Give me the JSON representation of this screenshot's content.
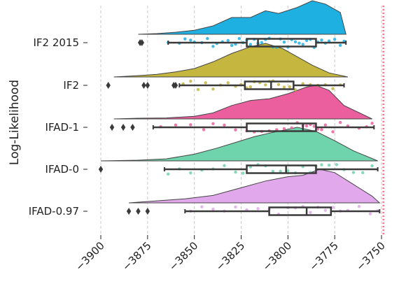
{
  "chart_data": {
    "type": "raincloud",
    "orientation": "horizontal",
    "title": "",
    "xlabel": "",
    "ylabel": "Log-Likelihood",
    "xlim": [
      -3900,
      -3750
    ],
    "x_ticks": [
      -3900,
      -3875,
      -3850,
      -3825,
      -3800,
      -3775,
      -3750
    ],
    "x_tick_labels": [
      "−3900",
      "−3875",
      "−3850",
      "−3825",
      "−3800",
      "−3775",
      "−3750"
    ],
    "grid": "vertical dashed",
    "reference_line": {
      "x": -3749,
      "color": "#ff6f86",
      "style": "dotted"
    },
    "categories": [
      "IF2 2015",
      "IF2",
      "IFAD-1",
      "IFAD-0",
      "IFAD-0.97"
    ],
    "series": [
      {
        "name": "IF2 2015",
        "color": "#1fb0e2",
        "box": {
          "whisker_low": -3864,
          "q1": -3822,
          "median": -3816,
          "q3": -3785,
          "whisker_high": -3769
        },
        "outliers": [
          -3879,
          -3878
        ],
        "density": [
          [
            -3880,
            0.0
          ],
          [
            -3870,
            0.02
          ],
          [
            -3860,
            0.06
          ],
          [
            -3850,
            0.12
          ],
          [
            -3840,
            0.25
          ],
          [
            -3830,
            0.5
          ],
          [
            -3820,
            0.5
          ],
          [
            -3812,
            0.7
          ],
          [
            -3805,
            0.62
          ],
          [
            -3795,
            0.8
          ],
          [
            -3787,
            1.0
          ],
          [
            -3780,
            0.9
          ],
          [
            -3772,
            0.65
          ],
          [
            -3769,
            0.0
          ]
        ],
        "points": [
          -3864,
          -3858,
          -3855,
          -3852,
          -3850,
          -3846,
          -3843,
          -3840,
          -3838,
          -3835,
          -3832,
          -3830,
          -3828,
          -3826,
          -3824,
          -3822,
          -3820,
          -3818,
          -3816,
          -3814,
          -3812,
          -3810,
          -3808,
          -3806,
          -3804,
          -3802,
          -3800,
          -3798,
          -3796,
          -3794,
          -3792,
          -3790,
          -3788,
          -3786,
          -3784,
          -3782,
          -3780,
          -3778,
          -3775,
          -3772,
          -3770
        ]
      },
      {
        "name": "IF2",
        "color": "#c4b63e",
        "box": {
          "whisker_low": -3858,
          "q1": -3823,
          "median": -3809,
          "q3": -3797,
          "whisker_high": -3770
        },
        "outliers": [
          -3896,
          -3877,
          -3875,
          -3861,
          -3860
        ],
        "density": [
          [
            -3893,
            0.0
          ],
          [
            -3880,
            0.04
          ],
          [
            -3870,
            0.08
          ],
          [
            -3860,
            0.15
          ],
          [
            -3850,
            0.25
          ],
          [
            -3840,
            0.45
          ],
          [
            -3830,
            0.7
          ],
          [
            -3820,
            0.9
          ],
          [
            -3812,
            1.0
          ],
          [
            -3803,
            0.85
          ],
          [
            -3795,
            0.6
          ],
          [
            -3787,
            0.35
          ],
          [
            -3778,
            0.12
          ],
          [
            -3768,
            0.0
          ]
        ],
        "points": [
          -3856,
          -3852,
          -3848,
          -3844,
          -3840,
          -3836,
          -3832,
          -3828,
          -3825,
          -3822,
          -3820,
          -3818,
          -3815,
          -3812,
          -3810,
          -3808,
          -3805,
          -3802,
          -3799,
          -3796,
          -3792,
          -3788,
          -3784,
          -3780,
          -3776,
          -3772
        ]
      },
      {
        "name": "IFAD-1",
        "color": "#ec5f9e",
        "box": {
          "whisker_low": -3872,
          "q1": -3822,
          "median": -3792,
          "q3": -3785,
          "whisker_high": -3754
        },
        "outliers": [
          -3894,
          -3888,
          -3883
        ],
        "density": [
          [
            -3893,
            0.0
          ],
          [
            -3880,
            0.02
          ],
          [
            -3865,
            0.03
          ],
          [
            -3850,
            0.08
          ],
          [
            -3840,
            0.18
          ],
          [
            -3830,
            0.4
          ],
          [
            -3820,
            0.55
          ],
          [
            -3810,
            0.6
          ],
          [
            -3800,
            0.75
          ],
          [
            -3790,
            0.95
          ],
          [
            -3785,
            1.0
          ],
          [
            -3778,
            0.85
          ],
          [
            -3770,
            0.4
          ],
          [
            -3755,
            0.0
          ]
        ],
        "points": [
          -3868,
          -3860,
          -3852,
          -3845,
          -3840,
          -3834,
          -3828,
          -3822,
          -3818,
          -3814,
          -3810,
          -3806,
          -3802,
          -3798,
          -3795,
          -3792,
          -3790,
          -3788,
          -3786,
          -3784,
          -3782,
          -3780,
          -3776,
          -3772,
          -3768,
          -3762,
          -3758,
          -3755
        ]
      },
      {
        "name": "IFAD-0",
        "color": "#6fd4ac",
        "box": {
          "whisker_low": -3866,
          "q1": -3822,
          "median": -3801,
          "q3": -3785,
          "whisker_high": -3752
        },
        "outliers": [
          -3900
        ],
        "density": [
          [
            -3900,
            0.0
          ],
          [
            -3880,
            0.02
          ],
          [
            -3865,
            0.06
          ],
          [
            -3850,
            0.2
          ],
          [
            -3838,
            0.38
          ],
          [
            -3828,
            0.55
          ],
          [
            -3818,
            0.72
          ],
          [
            -3808,
            0.85
          ],
          [
            -3795,
            1.0
          ],
          [
            -3785,
            0.88
          ],
          [
            -3775,
            0.6
          ],
          [
            -3765,
            0.3
          ],
          [
            -3752,
            0.0
          ]
        ],
        "points": [
          -3864,
          -3858,
          -3852,
          -3846,
          -3840,
          -3834,
          -3828,
          -3824,
          -3820,
          -3816,
          -3812,
          -3808,
          -3804,
          -3800,
          -3796,
          -3792,
          -3788,
          -3785,
          -3782,
          -3778,
          -3774,
          -3770,
          -3765,
          -3760,
          -3755
        ]
      },
      {
        "name": "IFAD-0.97",
        "color": "#e2a8ec",
        "box": {
          "whisker_low": -3855,
          "q1": -3810,
          "median": -3790,
          "q3": -3777,
          "whisker_high": -3751
        },
        "outliers": [
          -3885,
          -3880,
          -3875
        ],
        "density": [
          [
            -3885,
            0.0
          ],
          [
            -3870,
            0.06
          ],
          [
            -3855,
            0.12
          ],
          [
            -3840,
            0.22
          ],
          [
            -3825,
            0.45
          ],
          [
            -3812,
            0.65
          ],
          [
            -3800,
            0.78
          ],
          [
            -3792,
            0.82
          ],
          [
            -3783,
            1.0
          ],
          [
            -3775,
            0.9
          ],
          [
            -3765,
            0.55
          ],
          [
            -3755,
            0.2
          ],
          [
            -3751,
            0.0
          ]
        ],
        "points": [
          -3852,
          -3846,
          -3840,
          -3834,
          -3828,
          -3822,
          -3816,
          -3810,
          -3805,
          -3800,
          -3796,
          -3792,
          -3788,
          -3784,
          -3780,
          -3776,
          -3772,
          -3768,
          -3762,
          -3756,
          -3752
        ]
      }
    ]
  }
}
